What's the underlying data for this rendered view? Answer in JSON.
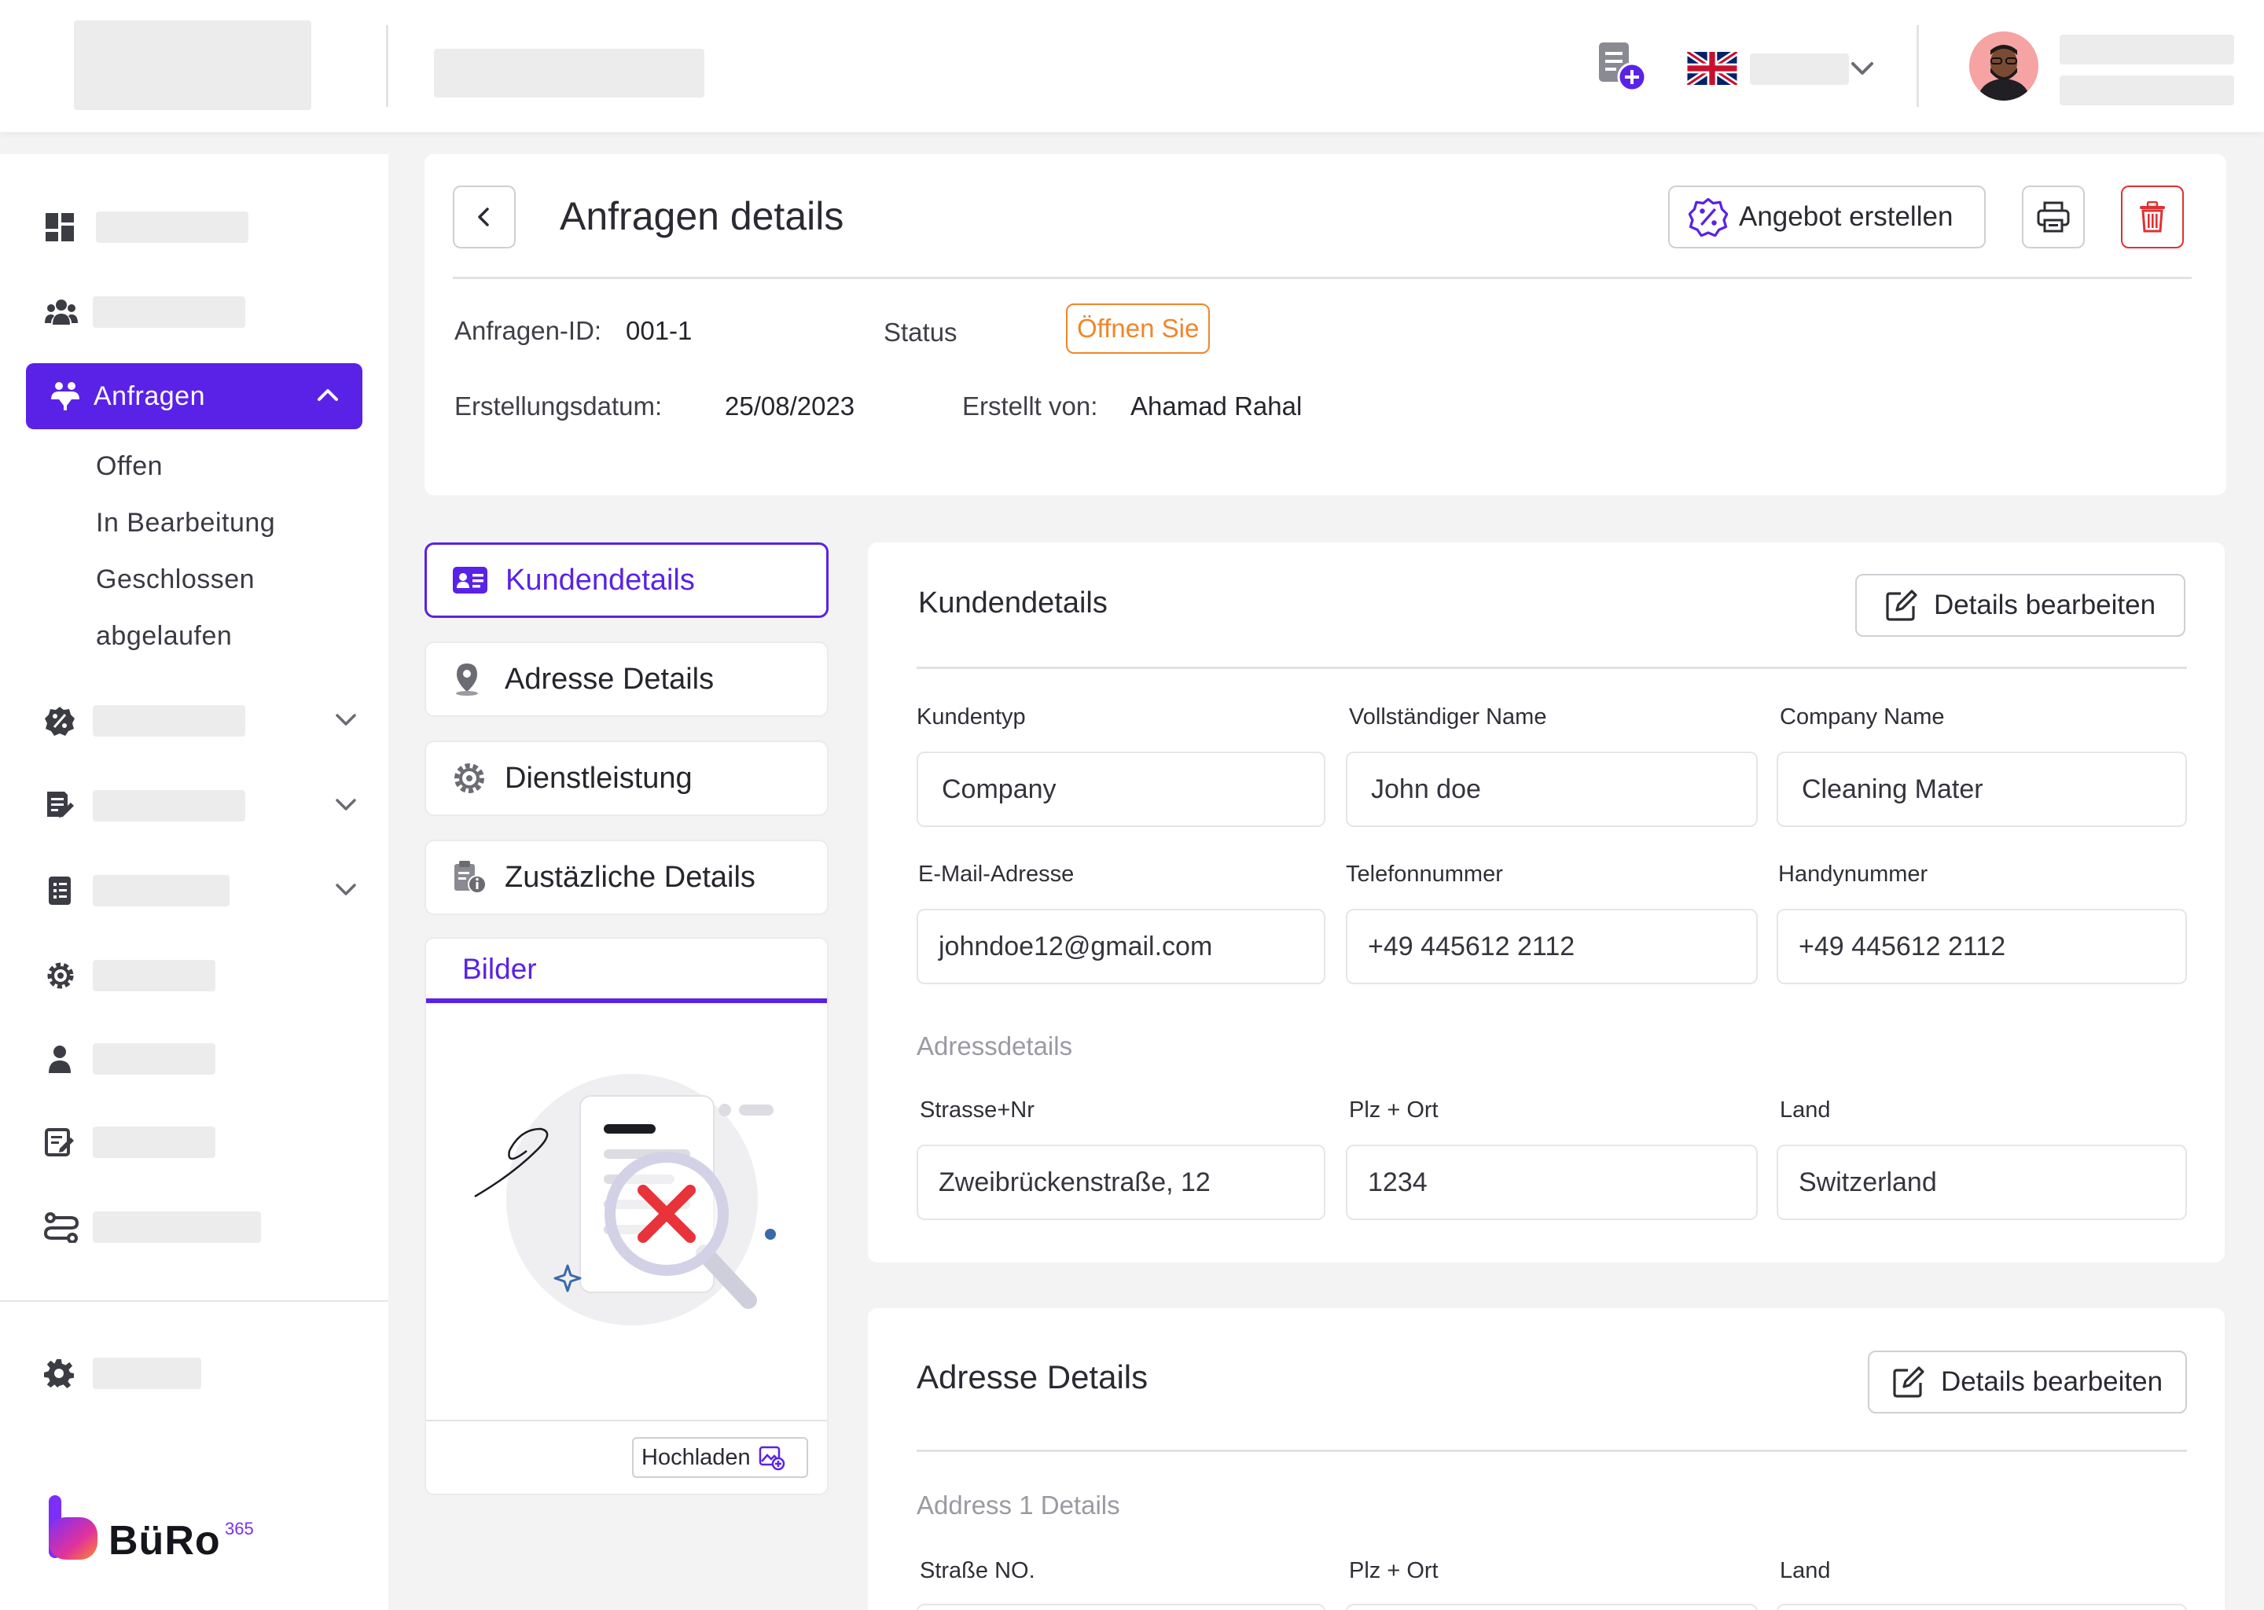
{
  "header": {
    "language_flag": "uk-flag-icon",
    "user_avatar": "avatar"
  },
  "sidebar": {
    "active_item": {
      "label": "Anfragen",
      "icon": "requests-icon"
    },
    "sub_items": [
      "Offen",
      "In Bearbeitung",
      "Geschlossen",
      "abgelaufen"
    ],
    "logo": {
      "text": "BüRo",
      "superscript": "365"
    }
  },
  "details": {
    "title": "Anfragen details",
    "create_offer_label": "Angebot erstellen",
    "id_label": "Anfragen-ID:",
    "id_value": "001-1",
    "status_label": "Status",
    "status_value": "Öffnen Sie",
    "created_date_label": "Erstellungsdatum:",
    "created_date_value": "25/08/2023",
    "created_by_label": "Erstellt von:",
    "created_by_value": "Ahamad Rahal"
  },
  "tabs": [
    {
      "label": "Kundendetails",
      "active": true
    },
    {
      "label": "Adresse Details",
      "active": false
    },
    {
      "label": "Dienstleistung",
      "active": false
    },
    {
      "label": "Zustäzliche Details",
      "active": false
    }
  ],
  "images": {
    "title": "Bilder",
    "upload_label": "Hochladen"
  },
  "customer": {
    "title": "Kundendetails",
    "edit_label": "Details bearbeiten",
    "fields": [
      {
        "label": "Kundentyp",
        "value": "Company"
      },
      {
        "label": "Vollständiger Name",
        "value": "John doe"
      },
      {
        "label": "Company Name",
        "value": "Cleaning Mater"
      },
      {
        "label": "E-Mail-Adresse",
        "value": "johndoe12@gmail.com"
      },
      {
        "label": "Telefonnummer",
        "value": "+49 445612 2112"
      },
      {
        "label": "Handynummer",
        "value": "+49 445612 2112"
      }
    ],
    "address_section": "Adressdetails",
    "address_fields": [
      {
        "label": "Strasse+Nr",
        "value": "Zweibrückenstraße, 12"
      },
      {
        "label": "Plz + Ort",
        "value": "1234"
      },
      {
        "label": "Land",
        "value": "Switzerland"
      }
    ]
  },
  "address": {
    "title": "Adresse Details",
    "edit_label": "Details bearbeiten",
    "section": "Address 1 Details",
    "col_labels": [
      "Straße NO.",
      "Plz + Ort",
      "Land"
    ]
  },
  "colors": {
    "accent": "#5a22e6",
    "status_orange": "#f0862a",
    "danger": "#e03131"
  }
}
